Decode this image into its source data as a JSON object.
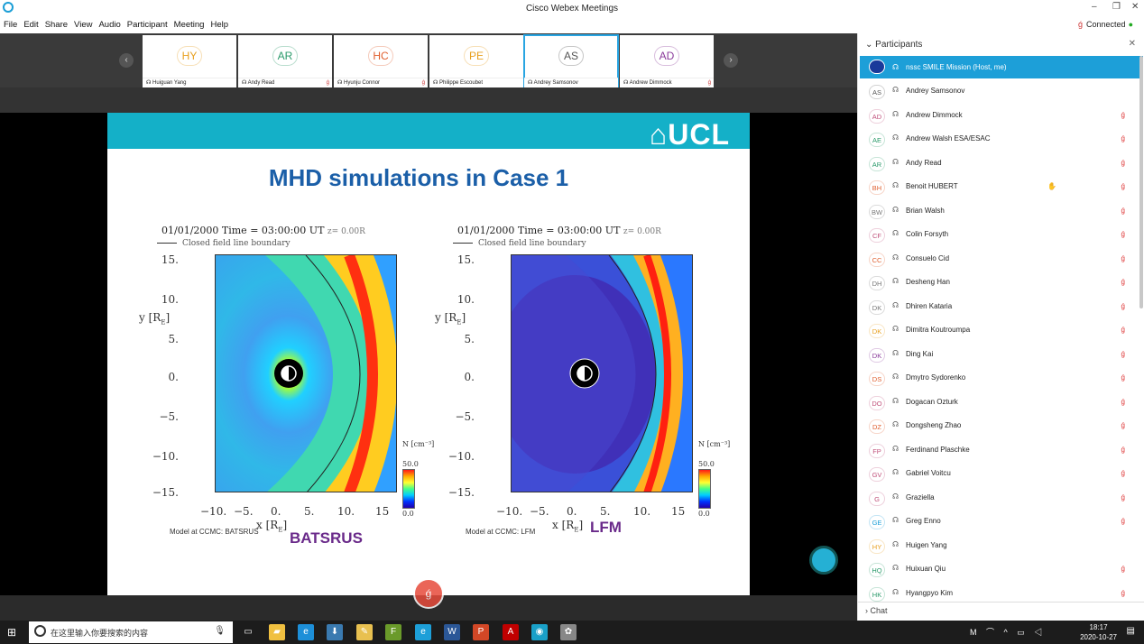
{
  "window": {
    "title": "Cisco Webex Meetings",
    "controls": [
      "–",
      "❐",
      "✕"
    ]
  },
  "menu": [
    "File",
    "Edit",
    "Share",
    "View",
    "Audio",
    "Participant",
    "Meeting",
    "Help"
  ],
  "connection": {
    "label": "Connected"
  },
  "video_strip": [
    {
      "initials": "HY",
      "name": "Huiguan Yang",
      "color": "#e8a020",
      "muted": false
    },
    {
      "initials": "AR",
      "name": "Andy Read",
      "color": "#2a9a6a",
      "muted": true
    },
    {
      "initials": "HC",
      "name": "Hyunju Connor",
      "color": "#e06030",
      "muted": true
    },
    {
      "initials": "PE",
      "name": "Philippe Escoubet",
      "color": "#e8a020",
      "muted": false
    },
    {
      "initials": "AS",
      "name": "Andrey Samsonov",
      "color": "#555555",
      "muted": false,
      "selected": true
    },
    {
      "initials": "AD",
      "name": "Andrew Dimmock",
      "color": "#8a3a9a",
      "muted": true
    }
  ],
  "slide": {
    "logo": "⌂UCL",
    "title": "MHD simulations in Case 1",
    "plots": [
      {
        "header": "01/01/2000 Time = 03:00:00 UT",
        "zlabel": "z= 0.00R",
        "legend": "Closed field line boundary",
        "ylabel": "y [R",
        "xlabel": "x [R",
        "yticks": [
          "15.",
          "10.",
          "5.",
          "0.",
          "−5.",
          "−10.",
          "−15."
        ],
        "xticks": [
          "−10.",
          "−5.",
          "0.",
          "5.",
          "10.",
          "15"
        ],
        "colorbar_label": "N [cm⁻³]",
        "colorbar_max": "50.0",
        "colorbar_min": "0.0",
        "model": "Model at CCMC: BATSRUS",
        "name": "BATSRUS"
      },
      {
        "header": "01/01/2000 Time = 03:00:00 UT",
        "zlabel": "z= 0.00R",
        "legend": "Closed field line boundary",
        "ylabel": "y [R",
        "xlabel": "x [R",
        "yticks": [
          "15.",
          "10.",
          "5.",
          "0.",
          "−5.",
          "−10.",
          "−15."
        ],
        "xticks": [
          "−10.",
          "−5.",
          "0.",
          "5.",
          "10.",
          "15"
        ],
        "colorbar_label": "N [cm⁻³]",
        "colorbar_max": "50.0",
        "colorbar_min": "0.0",
        "model": "Model at CCMC: LFM",
        "name": "LFM"
      }
    ]
  },
  "panel": {
    "title": "Participants",
    "host": {
      "name": "nssc SMILE Mission (Host, me)"
    },
    "participants": [
      {
        "initials": "AS",
        "name": "Andrey Samsonov",
        "color": "#555555",
        "muted": false
      },
      {
        "initials": "AD",
        "name": "Andrew Dimmock",
        "color": "#c0507a",
        "muted": true
      },
      {
        "initials": "AE",
        "name": "Andrew Walsh ESA/ESAC",
        "color": "#2a9a6a",
        "muted": true
      },
      {
        "initials": "AR",
        "name": "Andy Read",
        "color": "#2a9a6a",
        "muted": true
      },
      {
        "initials": "BH",
        "name": "Benoit HUBERT",
        "color": "#e06030",
        "muted": true,
        "hand": true
      },
      {
        "initials": "BW",
        "name": "Brian Walsh",
        "color": "#777777",
        "muted": true
      },
      {
        "initials": "CF",
        "name": "Colin Forsyth",
        "color": "#c0507a",
        "muted": true
      },
      {
        "initials": "CC",
        "name": "Consuelo Cid",
        "color": "#e06030",
        "muted": true
      },
      {
        "initials": "DH",
        "name": "Desheng Han",
        "color": "#777777",
        "muted": true
      },
      {
        "initials": "DK",
        "name": "Dhiren Kataria",
        "color": "#777777",
        "muted": true
      },
      {
        "initials": "DK",
        "name": "Dimitra Koutroumpa",
        "color": "#e8a020",
        "muted": true
      },
      {
        "initials": "DK",
        "name": "Ding Kai",
        "color": "#8a3a9a",
        "muted": true
      },
      {
        "initials": "DS",
        "name": "Dmytro Sydorenko",
        "color": "#e06030",
        "muted": true
      },
      {
        "initials": "DO",
        "name": "Dogacan Ozturk",
        "color": "#c0507a",
        "muted": true
      },
      {
        "initials": "DZ",
        "name": "Dongsheng Zhao",
        "color": "#e06030",
        "muted": true
      },
      {
        "initials": "FP",
        "name": "Ferdinand Plaschke",
        "color": "#c0507a",
        "muted": true
      },
      {
        "initials": "GV",
        "name": "Gabriel Voitcu",
        "color": "#c0507a",
        "muted": true
      },
      {
        "initials": "G",
        "name": "Graziella",
        "color": "#c0507a",
        "muted": true
      },
      {
        "initials": "GE",
        "name": "Greg Enno",
        "color": "#1d9fd8",
        "muted": true
      },
      {
        "initials": "HY",
        "name": "Huigen Yang",
        "color": "#e8a020",
        "muted": false
      },
      {
        "initials": "HQ",
        "name": "Huixuan Qiu",
        "color": "#2a9a6a",
        "muted": true
      },
      {
        "initials": "HK",
        "name": "Hyangpyo Kim",
        "color": "#2a9a6a",
        "muted": true
      }
    ],
    "chat_label": "Chat"
  },
  "taskbar": {
    "search_placeholder": "在这里输入你要搜索的内容",
    "time": "18:17",
    "date": "2020-10-27",
    "apps": [
      {
        "icon": "task-view-icon",
        "glyph": "▭",
        "color": "#1c1c1c"
      },
      {
        "icon": "file-explorer-icon",
        "glyph": "▰",
        "color": "#f0c040"
      },
      {
        "icon": "edge-icon",
        "glyph": "e",
        "color": "#1d8fd8"
      },
      {
        "icon": "download-app-icon",
        "glyph": "⬇",
        "color": "#3a7ab0"
      },
      {
        "icon": "notes-app-icon",
        "glyph": "✎",
        "color": "#e8c050"
      },
      {
        "icon": "ftp-app-icon",
        "glyph": "F",
        "color": "#6a9a2a"
      },
      {
        "icon": "ie-icon",
        "glyph": "e",
        "color": "#1d9fd8"
      },
      {
        "icon": "word-icon",
        "glyph": "W",
        "color": "#2b5797"
      },
      {
        "icon": "powerpoint-icon",
        "glyph": "P",
        "color": "#d24726"
      },
      {
        "icon": "acrobat-icon",
        "glyph": "A",
        "color": "#c00000"
      },
      {
        "icon": "webex-icon",
        "glyph": "◉",
        "color": "#1aa0c8"
      },
      {
        "icon": "network-app-icon",
        "glyph": "✿",
        "color": "#888888"
      }
    ]
  }
}
